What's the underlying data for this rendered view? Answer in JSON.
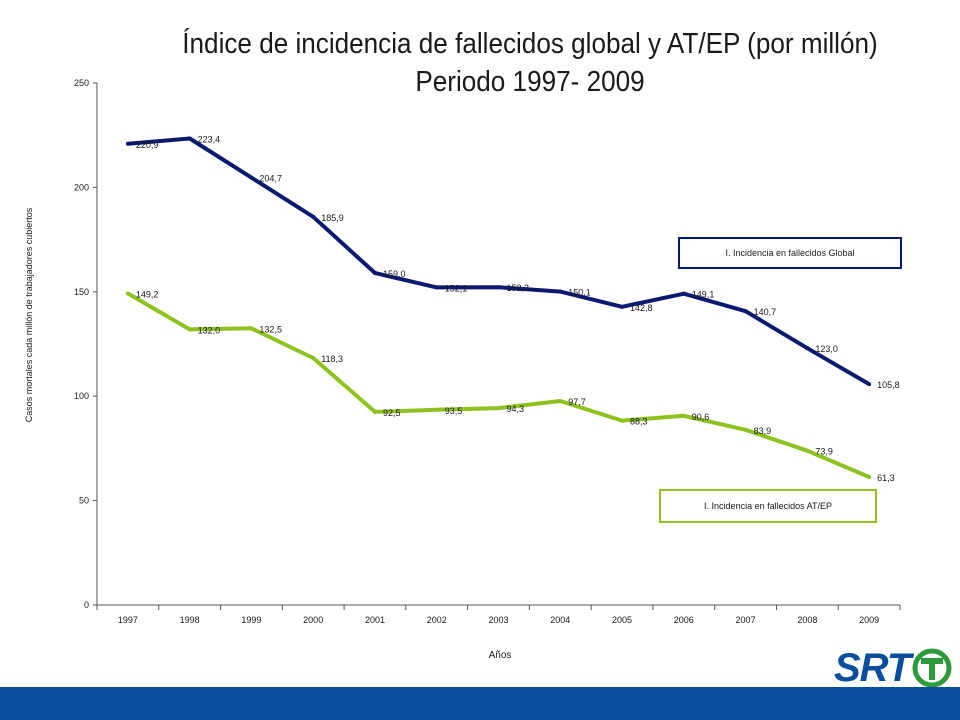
{
  "title_line1": "Índice de incidencia  de fallecidos global y AT/EP (por millón)",
  "title_line2": "Periodo 1997- 2009",
  "logo_text": "SRT",
  "colors": {
    "global": "#0a1a70",
    "atep": "#8dc21f",
    "footer": "#0c4e9e"
  },
  "chart_data": {
    "type": "line",
    "x": [
      "1997",
      "1998",
      "1999",
      "2000",
      "2001",
      "2002",
      "2003",
      "2004",
      "2005",
      "2006",
      "2007",
      "2008",
      "2009"
    ],
    "xlabel": "Años",
    "ylabel": "Casos mortales cada millón de trabajadores cubiertos",
    "ylim": [
      0,
      250
    ],
    "yticks": [
      "0",
      "50",
      "100",
      "150",
      "200",
      "250"
    ],
    "grid": false,
    "series": [
      {
        "name": "I. Incidencia en fallecidos Global",
        "color": "#0a1a70",
        "values": [
          220.9,
          223.4,
          204.7,
          185.9,
          159.0,
          152.1,
          152.2,
          150.1,
          142.8,
          149.1,
          140.7,
          123.0,
          105.8
        ],
        "labels": [
          "220,9",
          "223,4",
          "204,7",
          "185,9",
          "159,0",
          "152,1",
          "152,2",
          "150,1",
          "142,8",
          "149,1",
          "140,7",
          "123,0",
          "105,8"
        ]
      },
      {
        "name": "I. Incidencia en fallecidos AT/EP",
        "color": "#8dc21f",
        "values": [
          149.2,
          132.0,
          132.5,
          118.3,
          92.5,
          93.5,
          94.3,
          97.7,
          88.3,
          90.6,
          83.9,
          73.9,
          61.3
        ],
        "labels": [
          "149,2",
          "132,0",
          "132,5",
          "118,3",
          "92,5",
          "93,5",
          "94,3",
          "97,7",
          "88,3",
          "90,6",
          "83,9",
          "73,9",
          "61,3"
        ]
      }
    ]
  }
}
